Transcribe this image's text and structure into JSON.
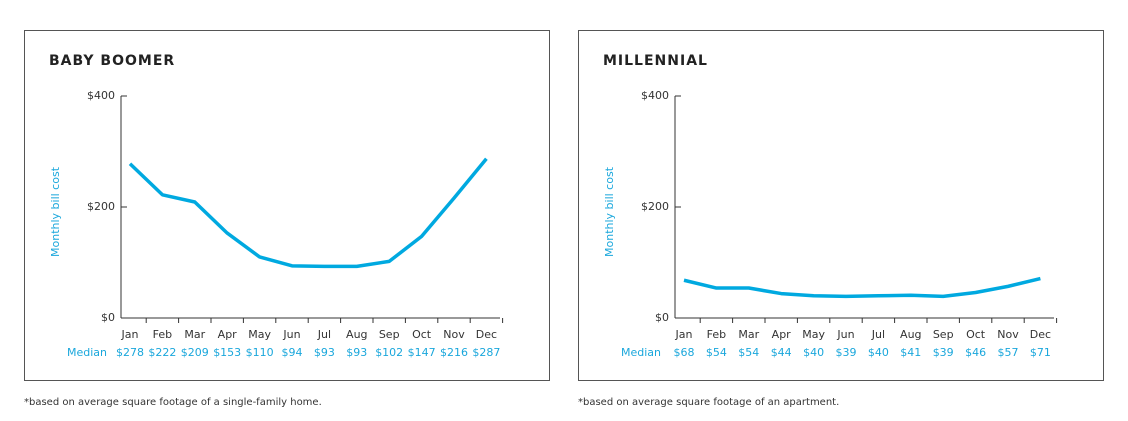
{
  "chart_data": [
    {
      "type": "line",
      "title": "BABY BOOMER",
      "y_label": "Monthly bill cost",
      "row_label": "Median",
      "footnote": "*based on average square footage of a single-family home.",
      "categories": [
        "Jan",
        "Feb",
        "Mar",
        "Apr",
        "May",
        "Jun",
        "Jul",
        "Aug",
        "Sep",
        "Oct",
        "Nov",
        "Dec"
      ],
      "values": [
        278,
        222,
        209,
        153,
        110,
        94,
        93,
        93,
        102,
        147,
        216,
        287
      ],
      "value_labels": [
        "$278",
        "$222",
        "$209",
        "$153",
        "$110",
        "$94",
        "$93",
        "$93",
        "$102",
        "$147",
        "$216",
        "$287"
      ],
      "color": "#00a9e0",
      "ylim": [
        0,
        400
      ],
      "yticks": [
        {
          "value": 0,
          "label": "$0"
        },
        {
          "value": 200,
          "label": "$200"
        },
        {
          "value": 400,
          "label": "$400"
        }
      ]
    },
    {
      "type": "line",
      "title": "MILLENNIAL",
      "y_label": "Monthly bill cost",
      "row_label": "Median",
      "footnote": "*based on average square footage of an apartment.",
      "categories": [
        "Jan",
        "Feb",
        "Mar",
        "Apr",
        "May",
        "Jun",
        "Jul",
        "Aug",
        "Sep",
        "Oct",
        "Nov",
        "Dec"
      ],
      "values": [
        68,
        54,
        54,
        44,
        40,
        39,
        40,
        41,
        39,
        46,
        57,
        71
      ],
      "value_labels": [
        "$68",
        "$54",
        "$54",
        "$44",
        "$40",
        "$39",
        "$40",
        "$41",
        "$39",
        "$46",
        "$57",
        "$71"
      ],
      "color": "#00a9e0",
      "ylim": [
        0,
        400
      ],
      "yticks": [
        {
          "value": 0,
          "label": "$0"
        },
        {
          "value": 200,
          "label": "$200"
        },
        {
          "value": 400,
          "label": "$400"
        }
      ]
    }
  ]
}
